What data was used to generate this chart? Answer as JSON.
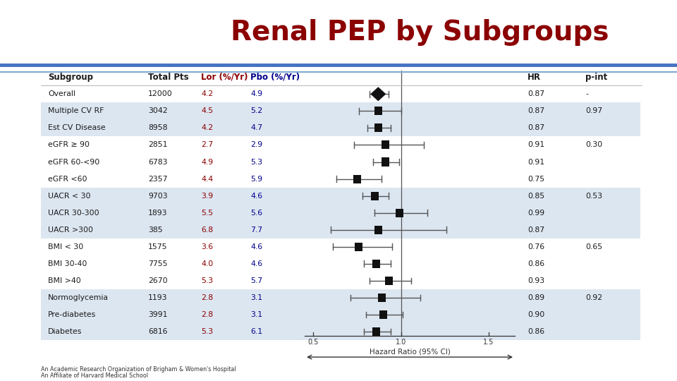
{
  "title": "Renal PEP by Subgroups",
  "title_color": "#8B0000",
  "stripe_color": "#dce6f1",
  "rows": [
    {
      "subgroup": "Overall",
      "total": "12000",
      "lor": "4.2",
      "pbo": "4.9",
      "hr": 0.87,
      "ci_lo": 0.82,
      "ci_hi": 0.93,
      "hr_str": "0.87",
      "pint": "-",
      "stripe": false,
      "overall": true,
      "group_first": false
    },
    {
      "subgroup": "Multiple CV RF",
      "total": "3042",
      "lor": "4.5",
      "pbo": "5.2",
      "hr": 0.87,
      "ci_lo": 0.76,
      "ci_hi": 1.0,
      "hr_str": "0.87",
      "pint": "0.97",
      "stripe": true,
      "overall": false,
      "group_first": true
    },
    {
      "subgroup": "Est CV Disease",
      "total": "8958",
      "lor": "4.2",
      "pbo": "4.7",
      "hr": 0.87,
      "ci_lo": 0.81,
      "ci_hi": 0.94,
      "hr_str": "0.87",
      "pint": "",
      "stripe": true,
      "overall": false,
      "group_first": false
    },
    {
      "subgroup": "eGFR ≥ 90",
      "total": "2851",
      "lor": "2.7",
      "pbo": "2.9",
      "hr": 0.91,
      "ci_lo": 0.73,
      "ci_hi": 1.13,
      "hr_str": "0.91",
      "pint": "0.30",
      "stripe": false,
      "overall": false,
      "group_first": true
    },
    {
      "subgroup": "eGFR 60-<90",
      "total": "6783",
      "lor": "4.9",
      "pbo": "5.3",
      "hr": 0.91,
      "ci_lo": 0.84,
      "ci_hi": 0.99,
      "hr_str": "0.91",
      "pint": "",
      "stripe": false,
      "overall": false,
      "group_first": false
    },
    {
      "subgroup": "eGFR <60",
      "total": "2357",
      "lor": "4.4",
      "pbo": "5.9",
      "hr": 0.75,
      "ci_lo": 0.63,
      "ci_hi": 0.89,
      "hr_str": "0.75",
      "pint": "",
      "stripe": false,
      "overall": false,
      "group_first": false
    },
    {
      "subgroup": "UACR < 30",
      "total": "9703",
      "lor": "3.9",
      "pbo": "4.6",
      "hr": 0.85,
      "ci_lo": 0.78,
      "ci_hi": 0.93,
      "hr_str": "0.85",
      "pint": "0.53",
      "stripe": true,
      "overall": false,
      "group_first": true
    },
    {
      "subgroup": "UACR 30-300",
      "total": "1893",
      "lor": "5.5",
      "pbo": "5.6",
      "hr": 0.99,
      "ci_lo": 0.85,
      "ci_hi": 1.15,
      "hr_str": "0.99",
      "pint": "",
      "stripe": true,
      "overall": false,
      "group_first": false
    },
    {
      "subgroup": "UACR >300",
      "total": "385",
      "lor": "6.8",
      "pbo": "7.7",
      "hr": 0.87,
      "ci_lo": 0.6,
      "ci_hi": 1.26,
      "hr_str": "0.87",
      "pint": "",
      "stripe": true,
      "overall": false,
      "group_first": false
    },
    {
      "subgroup": "BMI < 30",
      "total": "1575",
      "lor": "3.6",
      "pbo": "4.6",
      "hr": 0.76,
      "ci_lo": 0.61,
      "ci_hi": 0.95,
      "hr_str": "0.76",
      "pint": "0.65",
      "stripe": false,
      "overall": false,
      "group_first": true
    },
    {
      "subgroup": "BMI 30-40",
      "total": "7755",
      "lor": "4.0",
      "pbo": "4.6",
      "hr": 0.86,
      "ci_lo": 0.79,
      "ci_hi": 0.94,
      "hr_str": "0.86",
      "pint": "",
      "stripe": false,
      "overall": false,
      "group_first": false
    },
    {
      "subgroup": "BMI >40",
      "total": "2670",
      "lor": "5.3",
      "pbo": "5.7",
      "hr": 0.93,
      "ci_lo": 0.82,
      "ci_hi": 1.06,
      "hr_str": "0.93",
      "pint": "",
      "stripe": false,
      "overall": false,
      "group_first": false
    },
    {
      "subgroup": "Normoglycemia",
      "total": "1193",
      "lor": "2.8",
      "pbo": "3.1",
      "hr": 0.89,
      "ci_lo": 0.71,
      "ci_hi": 1.11,
      "hr_str": "0.89",
      "pint": "0.92",
      "stripe": true,
      "overall": false,
      "group_first": true
    },
    {
      "subgroup": "Pre-diabetes",
      "total": "3991",
      "lor": "2.8",
      "pbo": "3.1",
      "hr": 0.9,
      "ci_lo": 0.8,
      "ci_hi": 1.01,
      "hr_str": "0.90",
      "pint": "",
      "stripe": true,
      "overall": false,
      "group_first": false
    },
    {
      "subgroup": "Diabetes",
      "total": "6816",
      "lor": "5.3",
      "pbo": "6.1",
      "hr": 0.86,
      "ci_lo": 0.79,
      "ci_hi": 0.94,
      "hr_str": "0.86",
      "pint": "",
      "stripe": true,
      "overall": false,
      "group_first": false
    }
  ],
  "lor_color": "#8B0000",
  "pbo_color": "#00008B",
  "xmin": 0.45,
  "xmax": 1.65,
  "x_ticks": [
    0.5,
    1.0,
    1.5
  ],
  "footer_text1": "An Academic Research Organization of Brigham & Women's Hospital",
  "footer_text2": "An Affiliate of Harvard Medical School"
}
